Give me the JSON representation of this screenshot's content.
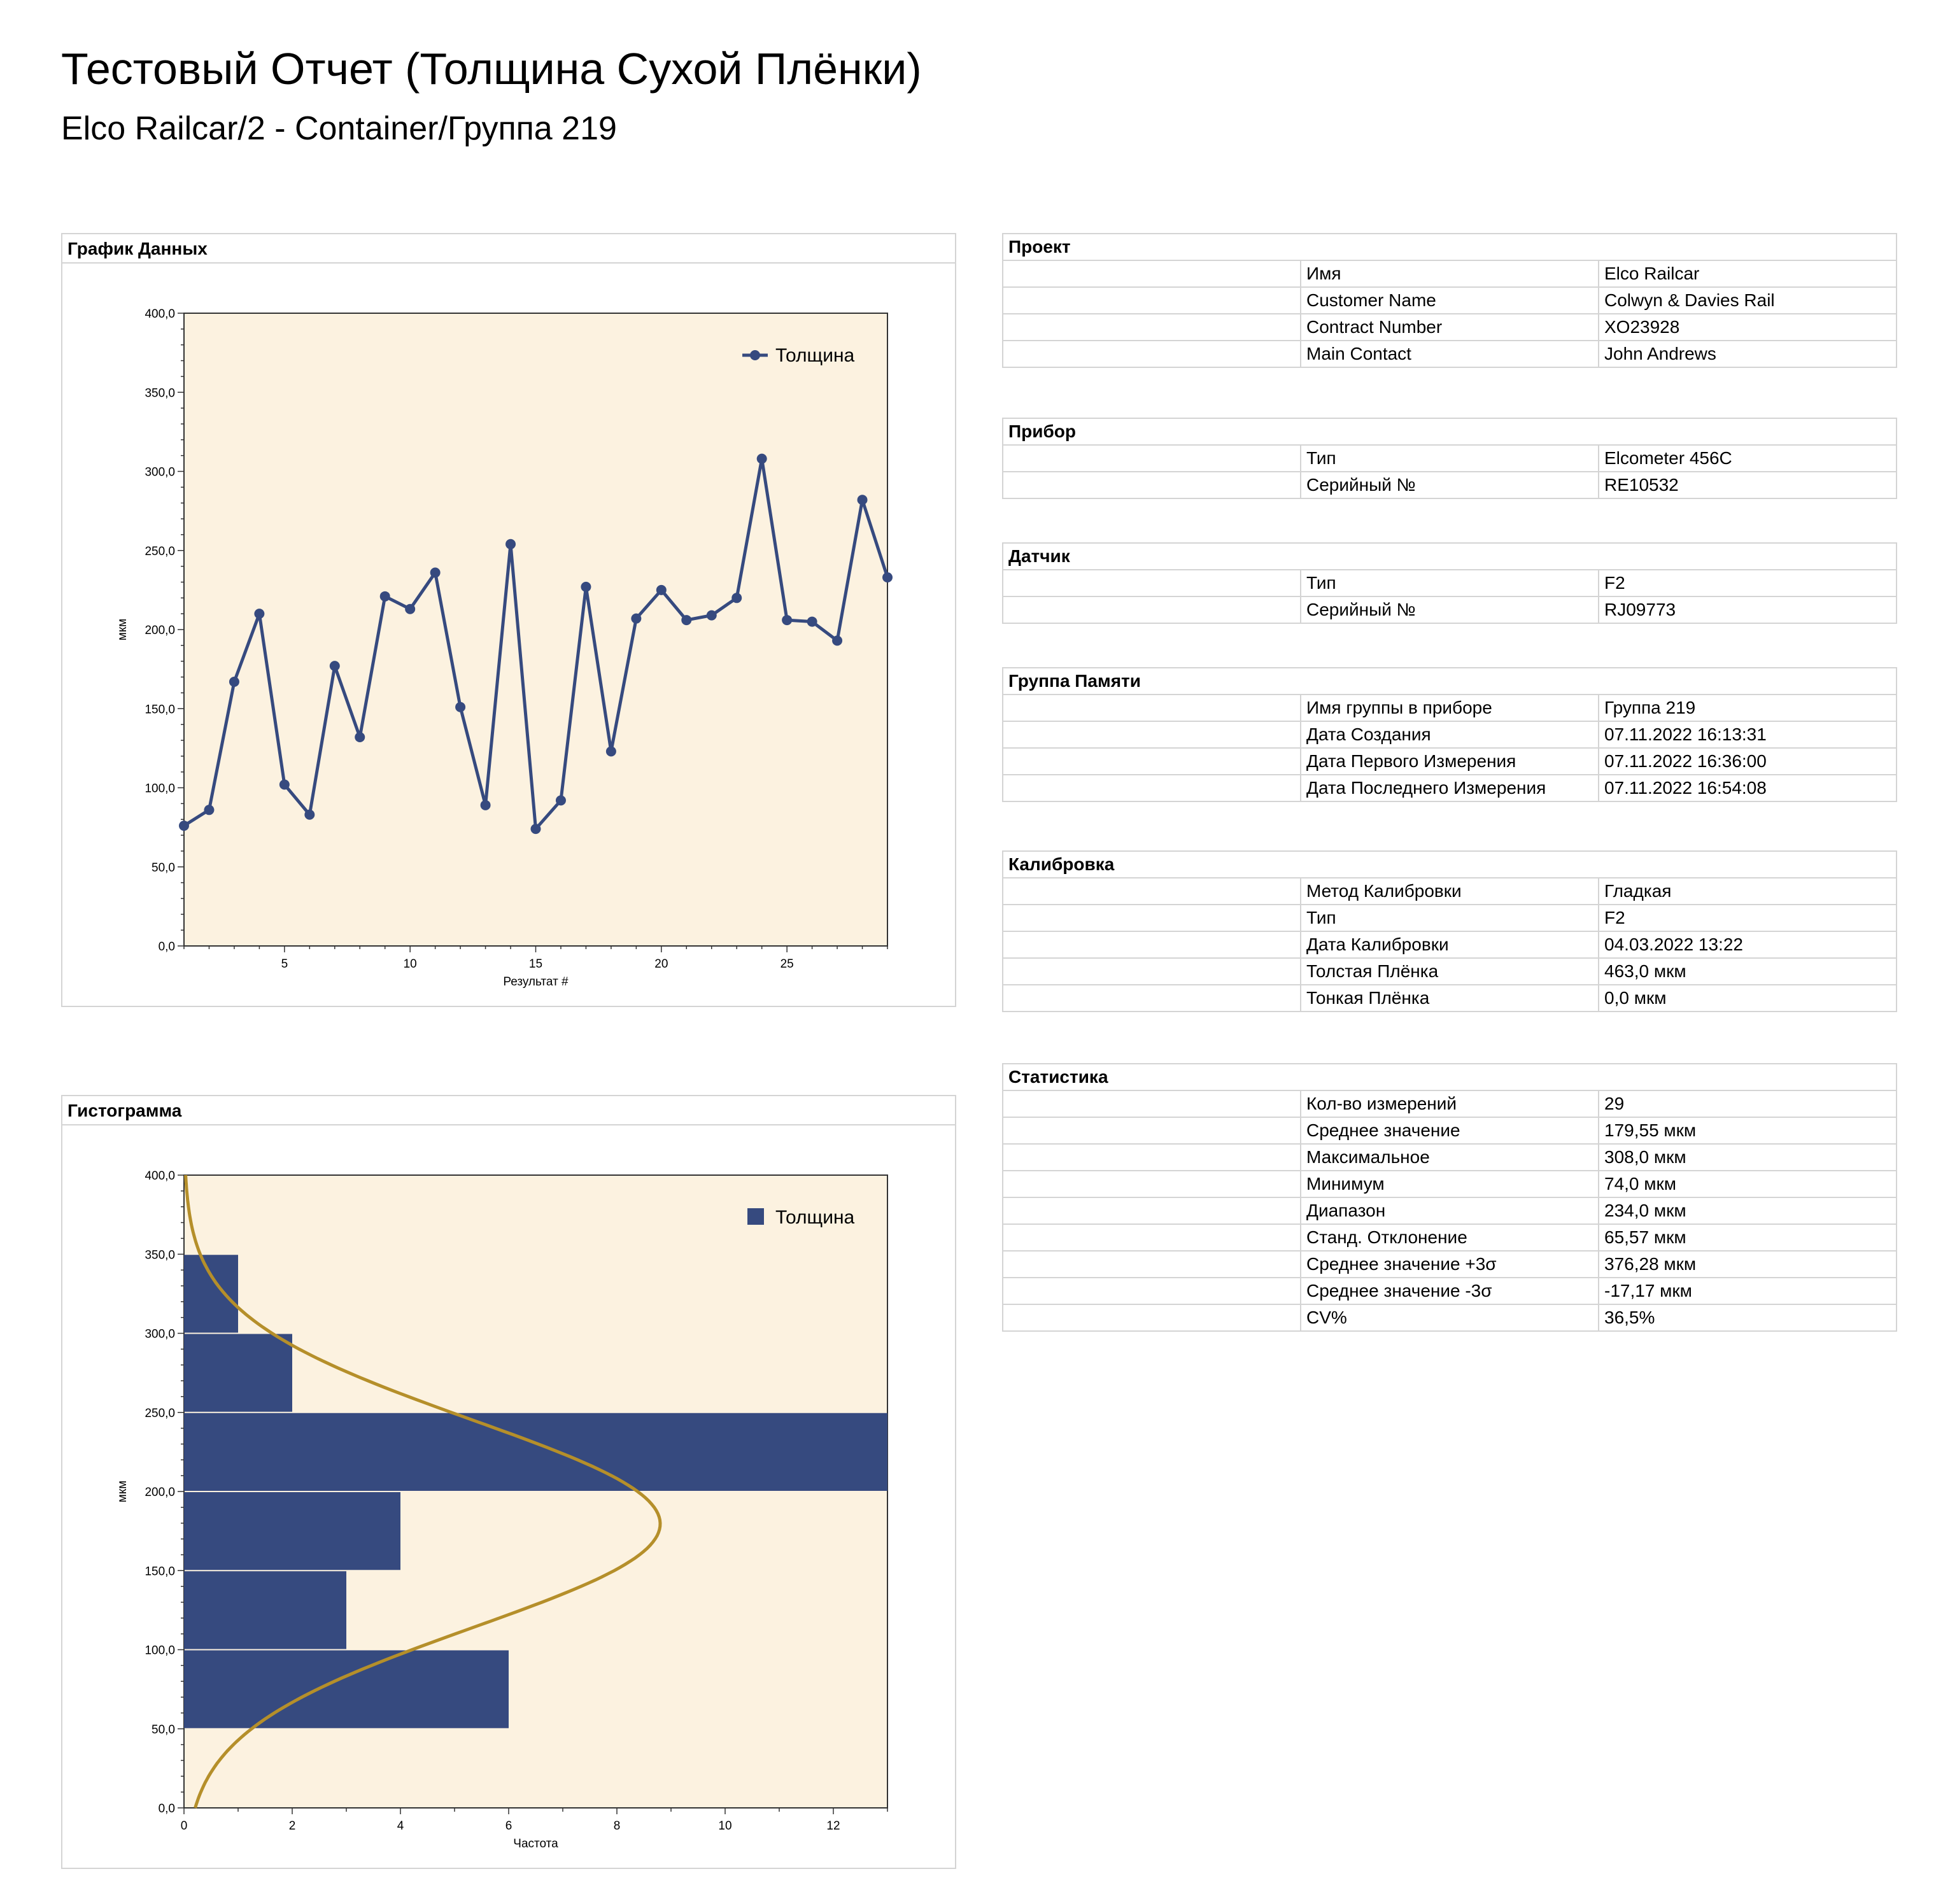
{
  "report": {
    "title": "Тестовый Отчет (Толщина Сухой Плёнки)",
    "subtitle": "Elco Railcar/2 - Container/Группа 219"
  },
  "line_panel": {
    "title": "График Данных"
  },
  "hist_panel": {
    "title": "Гистограмма"
  },
  "colors": {
    "series": "#364a7f",
    "plot_bg": "#fcf2e0",
    "curve": "#b58f2a",
    "border": "#d4d4d4"
  },
  "chart_data": [
    {
      "type": "line",
      "xlabel": "Результат #",
      "ylabel": "мкм",
      "xlim": [
        1,
        29
      ],
      "ylim": [
        0,
        400
      ],
      "xticks": [
        5,
        10,
        15,
        20,
        25
      ],
      "yticks": [
        "0,0",
        "50,0",
        "100,0",
        "150,0",
        "200,0",
        "250,0",
        "300,0",
        "350,0",
        "400,0"
      ],
      "legend": "top-right",
      "series": [
        {
          "name": "Толщина",
          "x": [
            1,
            2,
            3,
            4,
            5,
            6,
            7,
            8,
            9,
            10,
            11,
            12,
            13,
            14,
            15,
            16,
            17,
            18,
            19,
            20,
            21,
            22,
            23,
            24,
            25,
            26,
            27,
            28,
            29
          ],
          "values": [
            76,
            86,
            167,
            210,
            102,
            83,
            177,
            132,
            221,
            213,
            236,
            151,
            89,
            254,
            74,
            92,
            227,
            123,
            207,
            225,
            206,
            209,
            220,
            308,
            206,
            205,
            193,
            282,
            233
          ]
        }
      ]
    },
    {
      "type": "bar",
      "orientation": "horizontal",
      "xlabel": "Частота",
      "ylabel": "мкм",
      "xlim": [
        0,
        13
      ],
      "ylim": [
        0,
        400
      ],
      "xticks": [
        "0",
        "2",
        "4",
        "6",
        "8",
        "10",
        "12"
      ],
      "yticks": [
        "0,0",
        "50,0",
        "100,0",
        "150,0",
        "200,0",
        "250,0",
        "300,0",
        "350,0",
        "400,0"
      ],
      "legend": "top-right",
      "bins": [
        [
          50,
          100
        ],
        [
          100,
          150
        ],
        [
          150,
          200
        ],
        [
          200,
          250
        ],
        [
          250,
          300
        ],
        [
          300,
          350
        ]
      ],
      "series": [
        {
          "name": "Толщина",
          "values": [
            6,
            3,
            4,
            13,
            2,
            1
          ]
        }
      ],
      "normal_curve": {
        "mean": 179.55,
        "sd": 65.57,
        "peak": 8.8
      }
    }
  ],
  "sections": [
    {
      "title": "Проект",
      "rows": [
        [
          "Имя",
          "Elco Railcar"
        ],
        [
          "Customer Name",
          "Colwyn & Davies Rail"
        ],
        [
          "Contract Number",
          "XO23928"
        ],
        [
          "Main Contact",
          "John Andrews"
        ]
      ]
    },
    {
      "title": "Прибор",
      "rows": [
        [
          "Тип",
          "Elcometer 456C"
        ],
        [
          "Серийный №",
          "RE10532"
        ]
      ]
    },
    {
      "title": "Датчик",
      "rows": [
        [
          "Тип",
          "F2"
        ],
        [
          "Серийный №",
          "RJ09773"
        ]
      ]
    },
    {
      "title": "Группа Памяти",
      "rows": [
        [
          "Имя группы в приборе",
          "Группа 219"
        ],
        [
          "Дата Создания",
          "07.11.2022 16:13:31"
        ],
        [
          "Дата Первого Измерения",
          "07.11.2022 16:36:00"
        ],
        [
          "Дата Последнего Измерения",
          "07.11.2022 16:54:08"
        ]
      ]
    },
    {
      "title": "Калибровка",
      "rows": [
        [
          "Метод Калибровки",
          "Гладкая"
        ],
        [
          "Тип",
          "F2"
        ],
        [
          "Дата Калибровки",
          "04.03.2022 13:22"
        ],
        [
          "Толстая Плёнка",
          "463,0 мкм"
        ],
        [
          "Тонкая Плёнка",
          "0,0 мкм"
        ]
      ]
    },
    {
      "title": "Статистика",
      "rows": [
        [
          "Кол-во измерений",
          "29"
        ],
        [
          "Среднее значение",
          "179,55 мкм"
        ],
        [
          "Максимальное",
          "308,0 мкм"
        ],
        [
          "Минимум",
          "74,0 мкм"
        ],
        [
          "Диапазон",
          "234,0 мкм"
        ],
        [
          "Станд. Отклонение",
          "65,57 мкм"
        ],
        [
          "Среднее значение +3σ",
          "376,28 мкм"
        ],
        [
          "Среднее значение -3σ",
          "-17,17 мкм"
        ],
        [
          "CV%",
          "36,5%"
        ]
      ]
    }
  ]
}
